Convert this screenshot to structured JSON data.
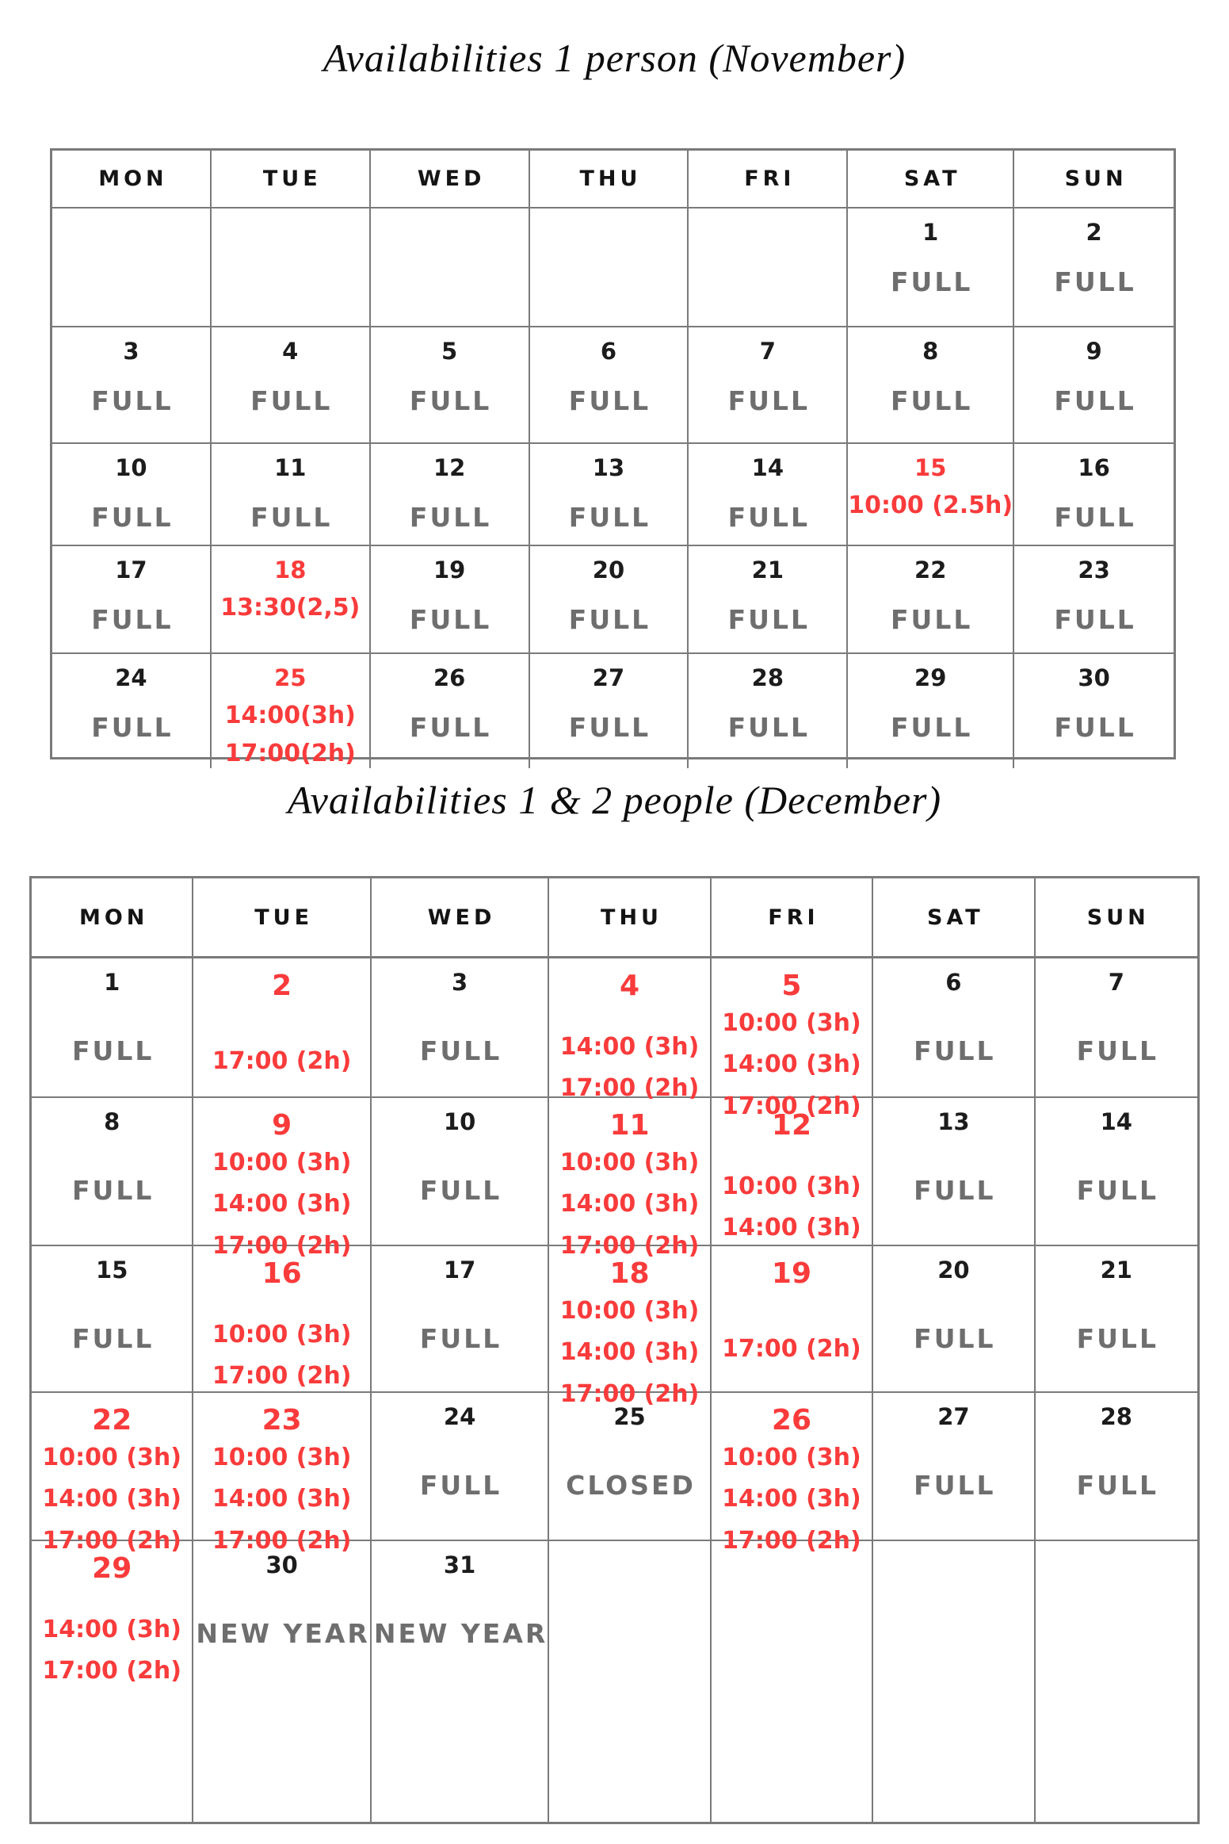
{
  "colors": {
    "red": "#f93b3b",
    "gray": "#6e6e6e",
    "ink": "#1c1c1c",
    "border": "#7a7a7a"
  },
  "weekdays": [
    "MON",
    "TUE",
    "WED",
    "THU",
    "FRI",
    "SAT",
    "SUN"
  ],
  "calendars": [
    {
      "name": "november",
      "title": "Availabilities 1 person (November)",
      "rows": [
        {
          "cells": [
            {},
            {},
            {},
            {},
            {},
            {
              "day": "1",
              "tone": "black",
              "lines": [
                {
                  "text": "FULL",
                  "tone": "gray"
                }
              ]
            },
            {
              "day": "2",
              "tone": "black",
              "lines": [
                {
                  "text": "FULL",
                  "tone": "gray"
                }
              ]
            }
          ]
        },
        {
          "cells": [
            {
              "day": "3",
              "tone": "black",
              "lines": [
                {
                  "text": "FULL",
                  "tone": "gray"
                }
              ]
            },
            {
              "day": "4",
              "tone": "black",
              "lines": [
                {
                  "text": "FULL",
                  "tone": "gray"
                }
              ]
            },
            {
              "day": "5",
              "tone": "black",
              "lines": [
                {
                  "text": "FULL",
                  "tone": "gray"
                }
              ]
            },
            {
              "day": "6",
              "tone": "black",
              "lines": [
                {
                  "text": "FULL",
                  "tone": "gray"
                }
              ]
            },
            {
              "day": "7",
              "tone": "black",
              "lines": [
                {
                  "text": "FULL",
                  "tone": "gray"
                }
              ]
            },
            {
              "day": "8",
              "tone": "black",
              "lines": [
                {
                  "text": "FULL",
                  "tone": "gray"
                }
              ]
            },
            {
              "day": "9",
              "tone": "black",
              "lines": [
                {
                  "text": "FULL",
                  "tone": "gray"
                }
              ]
            }
          ]
        },
        {
          "cells": [
            {
              "day": "10",
              "tone": "black",
              "lines": [
                {
                  "text": "FULL",
                  "tone": "gray"
                }
              ]
            },
            {
              "day": "11",
              "tone": "black",
              "lines": [
                {
                  "text": "FULL",
                  "tone": "gray"
                }
              ]
            },
            {
              "day": "12",
              "tone": "black",
              "lines": [
                {
                  "text": "FULL",
                  "tone": "gray"
                }
              ]
            },
            {
              "day": "13",
              "tone": "black",
              "lines": [
                {
                  "text": "FULL",
                  "tone": "gray"
                }
              ]
            },
            {
              "day": "14",
              "tone": "black",
              "lines": [
                {
                  "text": "FULL",
                  "tone": "gray"
                }
              ]
            },
            {
              "day": "15",
              "tone": "red",
              "lines": [
                {
                  "text": "10:00 (2.5h)",
                  "tone": "red"
                }
              ]
            },
            {
              "day": "16",
              "tone": "black",
              "lines": [
                {
                  "text": "FULL",
                  "tone": "gray"
                }
              ]
            }
          ]
        },
        {
          "cells": [
            {
              "day": "17",
              "tone": "black",
              "lines": [
                {
                  "text": "FULL",
                  "tone": "gray"
                }
              ]
            },
            {
              "day": "18",
              "tone": "red",
              "lines": [
                {
                  "text": "13:30(2,5)",
                  "tone": "red"
                }
              ]
            },
            {
              "day": "19",
              "tone": "black",
              "lines": [
                {
                  "text": "FULL",
                  "tone": "gray"
                }
              ]
            },
            {
              "day": "20",
              "tone": "black",
              "lines": [
                {
                  "text": "FULL",
                  "tone": "gray"
                }
              ]
            },
            {
              "day": "21",
              "tone": "black",
              "lines": [
                {
                  "text": "FULL",
                  "tone": "gray"
                }
              ]
            },
            {
              "day": "22",
              "tone": "black",
              "lines": [
                {
                  "text": "FULL",
                  "tone": "gray"
                }
              ]
            },
            {
              "day": "23",
              "tone": "black",
              "lines": [
                {
                  "text": "FULL",
                  "tone": "gray"
                }
              ]
            }
          ]
        },
        {
          "cells": [
            {
              "day": "24",
              "tone": "black",
              "lines": [
                {
                  "text": "FULL",
                  "tone": "gray"
                }
              ]
            },
            {
              "day": "25",
              "tone": "red",
              "lines": [
                {
                  "text": "14:00(3h)",
                  "tone": "red"
                },
                {
                  "text": "17:00(2h)",
                  "tone": "red"
                }
              ]
            },
            {
              "day": "26",
              "tone": "black",
              "lines": [
                {
                  "text": "FULL",
                  "tone": "gray"
                }
              ]
            },
            {
              "day": "27",
              "tone": "black",
              "lines": [
                {
                  "text": "FULL",
                  "tone": "gray"
                }
              ]
            },
            {
              "day": "28",
              "tone": "black",
              "lines": [
                {
                  "text": "FULL",
                  "tone": "gray"
                }
              ]
            },
            {
              "day": "29",
              "tone": "black",
              "lines": [
                {
                  "text": "FULL",
                  "tone": "gray"
                }
              ]
            },
            {
              "day": "30",
              "tone": "black",
              "lines": [
                {
                  "text": "FULL",
                  "tone": "gray"
                }
              ]
            }
          ]
        }
      ]
    },
    {
      "name": "december",
      "title": "Availabilities 1 & 2 people (December)",
      "rows": [
        {
          "cells": [
            {
              "day": "1",
              "tone": "black",
              "lines": [
                {
                  "text": "FULL",
                  "tone": "gray"
                }
              ]
            },
            {
              "day": "2",
              "tone": "red",
              "lines": [
                {
                  "text": "17:00 (2h)",
                  "tone": "red"
                }
              ]
            },
            {
              "day": "3",
              "tone": "black",
              "lines": [
                {
                  "text": "FULL",
                  "tone": "gray"
                }
              ]
            },
            {
              "day": "4",
              "tone": "red",
              "lines": [
                {
                  "text": "14:00 (3h)",
                  "tone": "red"
                },
                {
                  "text": "17:00 (2h)",
                  "tone": "red"
                }
              ]
            },
            {
              "day": "5",
              "tone": "red",
              "lines": [
                {
                  "text": "10:00 (3h)",
                  "tone": "red"
                },
                {
                  "text": "14:00 (3h)",
                  "tone": "red"
                },
                {
                  "text": "17:00 (2h)",
                  "tone": "red"
                }
              ]
            },
            {
              "day": "6",
              "tone": "black",
              "lines": [
                {
                  "text": "FULL",
                  "tone": "gray"
                }
              ]
            },
            {
              "day": "7",
              "tone": "black",
              "lines": [
                {
                  "text": "FULL",
                  "tone": "gray"
                }
              ]
            }
          ]
        },
        {
          "cells": [
            {
              "day": "8",
              "tone": "black",
              "lines": [
                {
                  "text": "FULL",
                  "tone": "gray"
                }
              ]
            },
            {
              "day": "9",
              "tone": "red",
              "lines": [
                {
                  "text": "10:00 (3h)",
                  "tone": "red"
                },
                {
                  "text": "14:00 (3h)",
                  "tone": "red"
                },
                {
                  "text": "17:00 (2h)",
                  "tone": "red"
                }
              ]
            },
            {
              "day": "10",
              "tone": "black",
              "lines": [
                {
                  "text": "FULL",
                  "tone": "gray"
                }
              ]
            },
            {
              "day": "11",
              "tone": "red",
              "lines": [
                {
                  "text": "10:00 (3h)",
                  "tone": "red"
                },
                {
                  "text": "14:00 (3h)",
                  "tone": "red"
                },
                {
                  "text": "17:00 (2h)",
                  "tone": "red"
                }
              ]
            },
            {
              "day": "12",
              "tone": "red",
              "lines": [
                {
                  "text": "10:00 (3h)",
                  "tone": "red"
                },
                {
                  "text": "14:00 (3h)",
                  "tone": "red"
                }
              ]
            },
            {
              "day": "13",
              "tone": "black",
              "lines": [
                {
                  "text": "FULL",
                  "tone": "gray"
                }
              ]
            },
            {
              "day": "14",
              "tone": "black",
              "lines": [
                {
                  "text": "FULL",
                  "tone": "gray"
                }
              ]
            }
          ]
        },
        {
          "cells": [
            {
              "day": "15",
              "tone": "black",
              "lines": [
                {
                  "text": "FULL",
                  "tone": "gray"
                }
              ]
            },
            {
              "day": "16",
              "tone": "red",
              "lines": [
                {
                  "text": "10:00 (3h)",
                  "tone": "red"
                },
                {
                  "text": "17:00 (2h)",
                  "tone": "red"
                }
              ]
            },
            {
              "day": "17",
              "tone": "black",
              "lines": [
                {
                  "text": "FULL",
                  "tone": "gray"
                }
              ]
            },
            {
              "day": "18",
              "tone": "red",
              "lines": [
                {
                  "text": "10:00 (3h)",
                  "tone": "red"
                },
                {
                  "text": "14:00 (3h)",
                  "tone": "red"
                },
                {
                  "text": "17:00 (2h)",
                  "tone": "red"
                }
              ]
            },
            {
              "day": "19",
              "tone": "red",
              "lines": [
                {
                  "text": "17:00 (2h)",
                  "tone": "red"
                }
              ]
            },
            {
              "day": "20",
              "tone": "black",
              "lines": [
                {
                  "text": "FULL",
                  "tone": "gray"
                }
              ]
            },
            {
              "day": "21",
              "tone": "black",
              "lines": [
                {
                  "text": "FULL",
                  "tone": "gray"
                }
              ]
            }
          ]
        },
        {
          "cells": [
            {
              "day": "22",
              "tone": "red",
              "lines": [
                {
                  "text": "10:00 (3h)",
                  "tone": "red"
                },
                {
                  "text": "14:00 (3h)",
                  "tone": "red"
                },
                {
                  "text": "17:00 (2h)",
                  "tone": "red"
                }
              ]
            },
            {
              "day": "23",
              "tone": "red",
              "lines": [
                {
                  "text": "10:00 (3h)",
                  "tone": "red"
                },
                {
                  "text": "14:00 (3h)",
                  "tone": "red"
                },
                {
                  "text": "17:00 (2h)",
                  "tone": "red"
                }
              ]
            },
            {
              "day": "24",
              "tone": "black",
              "lines": [
                {
                  "text": "FULL",
                  "tone": "gray"
                }
              ]
            },
            {
              "day": "25",
              "tone": "black",
              "lines": [
                {
                  "text": "CLOSED",
                  "tone": "gray"
                }
              ]
            },
            {
              "day": "26",
              "tone": "red",
              "lines": [
                {
                  "text": "10:00 (3h)",
                  "tone": "red"
                },
                {
                  "text": "14:00 (3h)",
                  "tone": "red"
                },
                {
                  "text": "17:00 (2h)",
                  "tone": "red"
                }
              ]
            },
            {
              "day": "27",
              "tone": "black",
              "lines": [
                {
                  "text": "FULL",
                  "tone": "gray"
                }
              ]
            },
            {
              "day": "28",
              "tone": "black",
              "lines": [
                {
                  "text": "FULL",
                  "tone": "gray"
                }
              ]
            }
          ]
        },
        {
          "cells": [
            {
              "day": "29",
              "tone": "red",
              "lines": [
                {
                  "text": "14:00 (3h)",
                  "tone": "red"
                },
                {
                  "text": "17:00 (2h)",
                  "tone": "red"
                }
              ]
            },
            {
              "day": "30",
              "tone": "black",
              "lines": [
                {
                  "text": "NEW YEAR",
                  "tone": "gray"
                }
              ]
            },
            {
              "day": "31",
              "tone": "black",
              "lines": [
                {
                  "text": "NEW YEAR",
                  "tone": "gray"
                }
              ]
            },
            {},
            {},
            {},
            {}
          ]
        }
      ]
    }
  ]
}
